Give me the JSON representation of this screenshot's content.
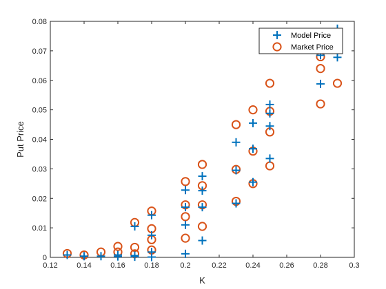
{
  "chart_data": {
    "type": "scatter",
    "title": "",
    "xlabel": "K",
    "ylabel": "Put Price",
    "xlim": [
      0.12,
      0.3
    ],
    "ylim": [
      0,
      0.08
    ],
    "xticks": [
      0.12,
      0.14,
      0.16,
      0.18,
      0.2,
      0.22,
      0.24,
      0.26,
      0.28,
      0.3
    ],
    "yticks": [
      0,
      0.01,
      0.02,
      0.03,
      0.04,
      0.05,
      0.06,
      0.07,
      0.08
    ],
    "xtick_labels": [
      "0.12",
      "0.14",
      "0.16",
      "0.18",
      "0.2",
      "0.22",
      "0.24",
      "0.26",
      "0.28",
      "0.3"
    ],
    "ytick_labels": [
      "0",
      "0.01",
      "0.02",
      "0.03",
      "0.04",
      "0.05",
      "0.06",
      "0.07",
      "0.08"
    ],
    "grid": false,
    "legend_position": "top-right",
    "series": [
      {
        "name": "Model Price",
        "marker": "plus",
        "color": "#0072BD",
        "points": [
          [
            0.13,
            0.0008
          ],
          [
            0.14,
            0.0004
          ],
          [
            0.15,
            0.0004
          ],
          [
            0.16,
            0.0003
          ],
          [
            0.16,
            0.0008
          ],
          [
            0.17,
            0.0002
          ],
          [
            0.17,
            0.0006
          ],
          [
            0.17,
            0.0105
          ],
          [
            0.18,
            0.0001
          ],
          [
            0.18,
            0.0018
          ],
          [
            0.18,
            0.0075
          ],
          [
            0.18,
            0.0143
          ],
          [
            0.2,
            0.0012
          ],
          [
            0.2,
            0.011
          ],
          [
            0.2,
            0.017
          ],
          [
            0.2,
            0.0228
          ],
          [
            0.21,
            0.0057
          ],
          [
            0.21,
            0.017
          ],
          [
            0.21,
            0.0226
          ],
          [
            0.21,
            0.0275
          ],
          [
            0.23,
            0.0183
          ],
          [
            0.23,
            0.0295
          ],
          [
            0.23,
            0.039
          ],
          [
            0.24,
            0.0255
          ],
          [
            0.24,
            0.0368
          ],
          [
            0.24,
            0.0455
          ],
          [
            0.25,
            0.0335
          ],
          [
            0.25,
            0.0445
          ],
          [
            0.25,
            0.0488
          ],
          [
            0.25,
            0.0518
          ],
          [
            0.28,
            0.0588
          ],
          [
            0.28,
            0.0685
          ],
          [
            0.29,
            0.0678
          ],
          [
            0.29,
            0.0775
          ]
        ]
      },
      {
        "name": "Market Price",
        "marker": "circle",
        "color": "#D95319",
        "points": [
          [
            0.13,
            0.0013
          ],
          [
            0.14,
            0.0008
          ],
          [
            0.15,
            0.0018
          ],
          [
            0.16,
            0.0018
          ],
          [
            0.16,
            0.0037
          ],
          [
            0.17,
            0.0012
          ],
          [
            0.17,
            0.0034
          ],
          [
            0.17,
            0.0118
          ],
          [
            0.18,
            0.0025
          ],
          [
            0.18,
            0.006
          ],
          [
            0.18,
            0.0097
          ],
          [
            0.18,
            0.0157
          ],
          [
            0.2,
            0.0065
          ],
          [
            0.2,
            0.0138
          ],
          [
            0.2,
            0.0178
          ],
          [
            0.2,
            0.0257
          ],
          [
            0.21,
            0.0105
          ],
          [
            0.21,
            0.0178
          ],
          [
            0.21,
            0.0243
          ],
          [
            0.21,
            0.0315
          ],
          [
            0.23,
            0.019
          ],
          [
            0.23,
            0.0298
          ],
          [
            0.23,
            0.045
          ],
          [
            0.24,
            0.025
          ],
          [
            0.24,
            0.036
          ],
          [
            0.24,
            0.05
          ],
          [
            0.25,
            0.031
          ],
          [
            0.25,
            0.0425
          ],
          [
            0.25,
            0.0495
          ],
          [
            0.25,
            0.059
          ],
          [
            0.28,
            0.052
          ],
          [
            0.28,
            0.064
          ],
          [
            0.28,
            0.068
          ],
          [
            0.29,
            0.059
          ]
        ]
      }
    ]
  }
}
